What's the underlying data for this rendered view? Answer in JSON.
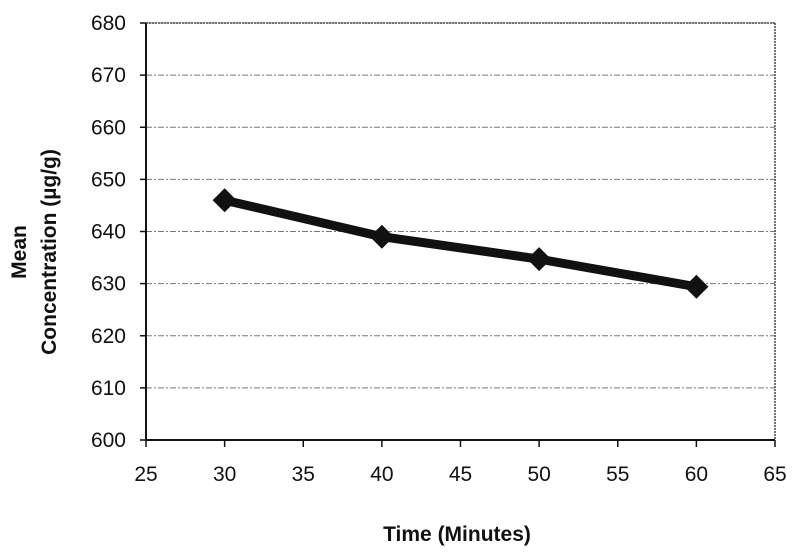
{
  "chart_data": {
    "type": "line",
    "title": "",
    "xlabel": "Time (Minutes)",
    "ylabel_lines": [
      "Mean",
      "Concentration (µg/g)"
    ],
    "ylabel": "Mean Concentration (µg/g)",
    "xlim": [
      25,
      65
    ],
    "ylim": [
      600,
      680
    ],
    "xticks": [
      25,
      30,
      35,
      40,
      45,
      50,
      55,
      60,
      65
    ],
    "yticks": [
      600,
      610,
      620,
      630,
      640,
      650,
      660,
      670,
      680
    ],
    "grid": "horizontal",
    "legend": null,
    "series": [
      {
        "name": "Mean Concentration",
        "marker": "diamond",
        "color": "#111111",
        "x": [
          30,
          40,
          50,
          60
        ],
        "values": [
          646,
          639,
          634.7,
          629.4
        ]
      }
    ]
  }
}
